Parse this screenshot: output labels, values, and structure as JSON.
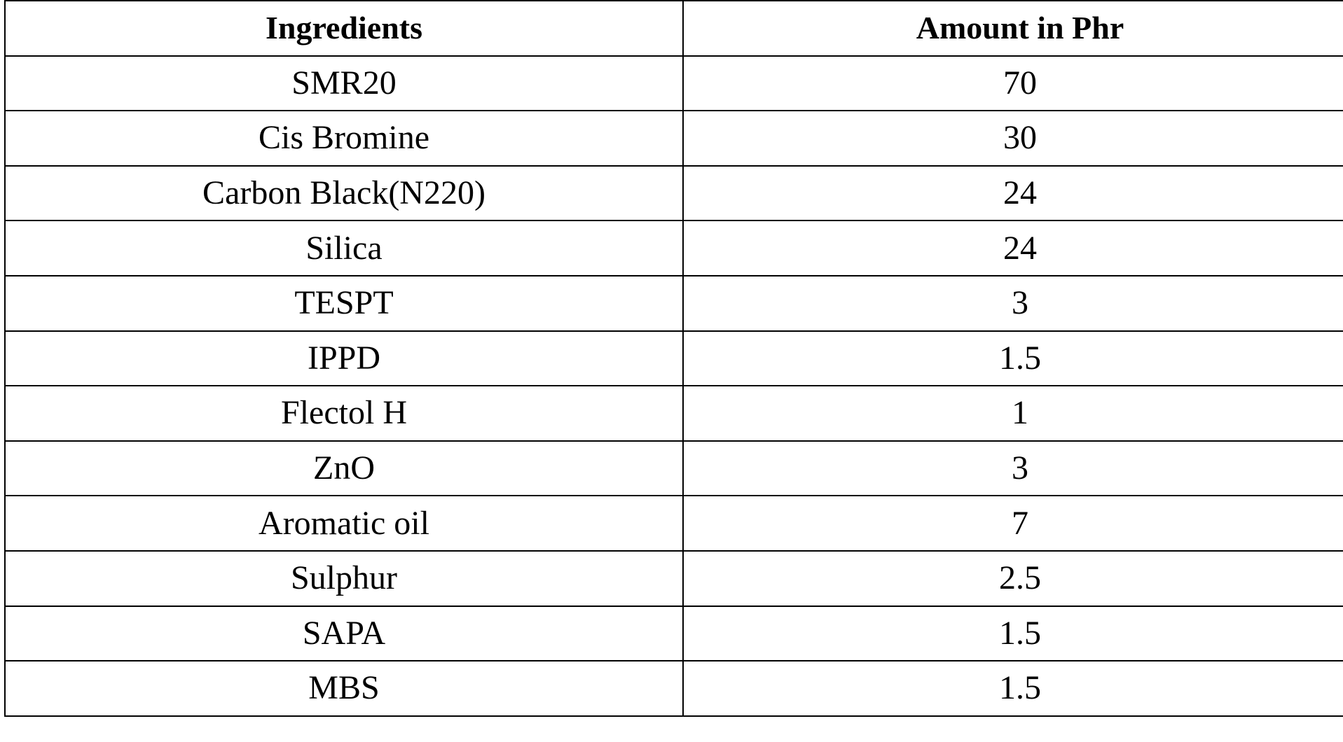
{
  "table": {
    "headers": [
      "Ingredients",
      "Amount in Phr"
    ],
    "rows": [
      [
        "SMR20",
        "70"
      ],
      [
        "Cis Bromine",
        "30"
      ],
      [
        "Carbon Black(N220)",
        "24"
      ],
      [
        "Silica",
        "24"
      ],
      [
        "TESPT",
        "3"
      ],
      [
        "IPPD",
        "1.5"
      ],
      [
        "Flectol H",
        "1"
      ],
      [
        "ZnO",
        "3"
      ],
      [
        "Aromatic oil",
        "7"
      ],
      [
        "Sulphur",
        "2.5"
      ],
      [
        "SAPA",
        "1.5"
      ],
      [
        "MBS",
        "1.5"
      ]
    ]
  }
}
